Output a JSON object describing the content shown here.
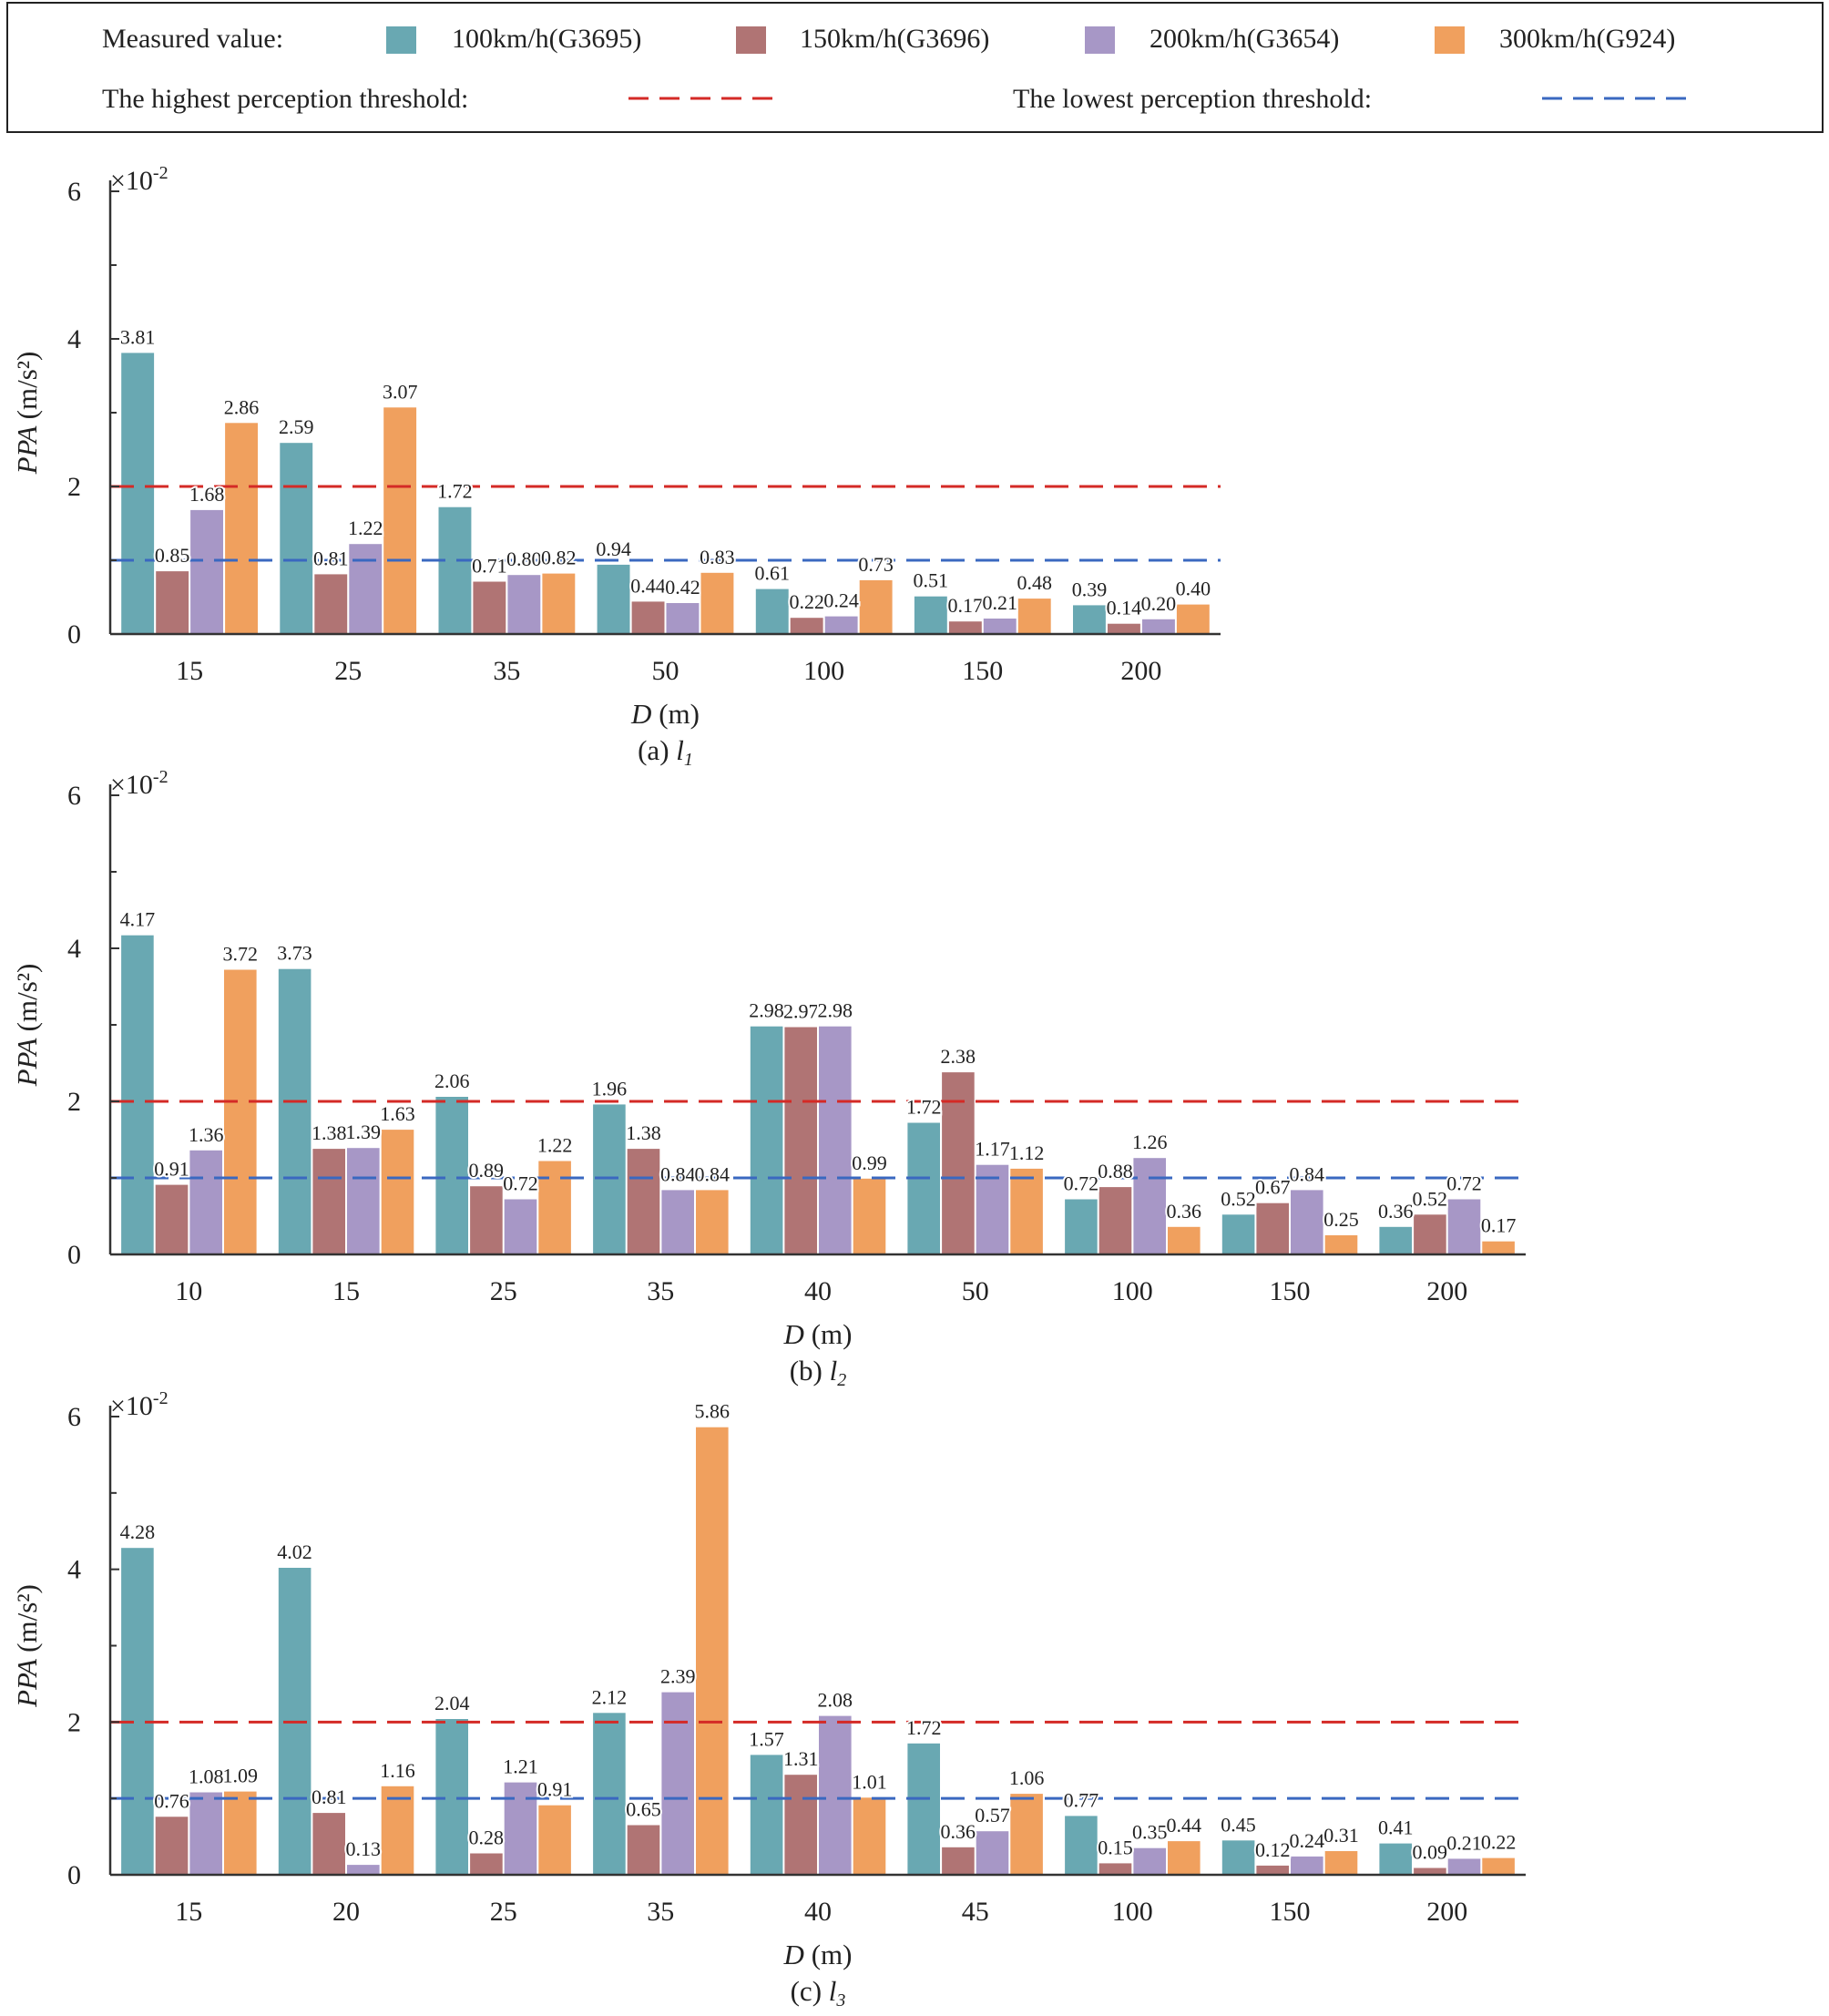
{
  "legend": {
    "measured_label": "Measured value:",
    "series_names": [
      "100km/h(G3695)",
      "150km/h(G3696)",
      "200km/h(G3654)",
      "300km/h(G924)"
    ],
    "highest_label": "The highest perception threshold:",
    "lowest_label": "The lowest perception threshold:"
  },
  "colors": {
    "series": [
      "#69a8b2",
      "#b07474",
      "#a797c6",
      "#f0a05e"
    ],
    "highest": "#d42a26",
    "lowest": "#3a68c0",
    "axis": "#333333"
  },
  "chart_data": [
    {
      "type": "bar",
      "panel_label": "(a)",
      "panel_var": "l",
      "panel_sub": "1",
      "xlabel_var": "D",
      "xlabel_unit": " (m)",
      "ylabel": "PPA (m/s²)",
      "y_exponent": "×10",
      "y_exponent_power": "-2",
      "ylim": [
        0,
        6
      ],
      "yticks": [
        0,
        2,
        4,
        6
      ],
      "thresholds": {
        "highest": 2,
        "lowest": 1
      },
      "categories": [
        "15",
        "25",
        "35",
        "50",
        "100",
        "150",
        "200"
      ],
      "series": [
        {
          "name": "100km/h(G3695)",
          "values": [
            3.81,
            2.59,
            1.72,
            0.94,
            0.61,
            0.51,
            0.39
          ]
        },
        {
          "name": "150km/h(G3696)",
          "values": [
            0.85,
            0.81,
            0.71,
            0.44,
            0.22,
            0.17,
            0.14
          ]
        },
        {
          "name": "200km/h(G3654)",
          "values": [
            1.68,
            1.22,
            0.8,
            0.42,
            0.24,
            0.21,
            0.2
          ]
        },
        {
          "name": "300km/h(G924)",
          "values": [
            2.86,
            3.07,
            0.82,
            0.83,
            0.73,
            0.48,
            0.4
          ]
        }
      ]
    },
    {
      "type": "bar",
      "panel_label": "(b)",
      "panel_var": "l",
      "panel_sub": "2",
      "xlabel_var": "D",
      "xlabel_unit": " (m)",
      "ylabel": "PPA (m/s²)",
      "y_exponent": "×10",
      "y_exponent_power": "-2",
      "ylim": [
        0,
        6
      ],
      "yticks": [
        0,
        2,
        4,
        6
      ],
      "thresholds": {
        "highest": 2,
        "lowest": 1
      },
      "categories": [
        "10",
        "15",
        "25",
        "35",
        "40",
        "50",
        "100",
        "150",
        "200"
      ],
      "series": [
        {
          "name": "100km/h(G3695)",
          "values": [
            4.17,
            3.73,
            2.06,
            1.96,
            2.98,
            1.72,
            0.72,
            0.52,
            0.36
          ]
        },
        {
          "name": "150km/h(G3696)",
          "values": [
            0.91,
            1.38,
            0.89,
            1.38,
            2.97,
            2.38,
            0.88,
            0.67,
            0.52
          ]
        },
        {
          "name": "200km/h(G3654)",
          "values": [
            1.36,
            1.39,
            0.72,
            0.84,
            2.98,
            1.17,
            1.26,
            0.84,
            0.72
          ]
        },
        {
          "name": "300km/h(G924)",
          "values": [
            3.72,
            1.63,
            1.22,
            0.84,
            0.99,
            1.12,
            0.36,
            0.25,
            0.17
          ]
        }
      ]
    },
    {
      "type": "bar",
      "panel_label": "(c)",
      "panel_var": "l",
      "panel_sub": "3",
      "xlabel_var": "D",
      "xlabel_unit": " (m)",
      "ylabel": "PPA (m/s²)",
      "y_exponent": "×10",
      "y_exponent_power": "-2",
      "ylim": [
        0,
        6
      ],
      "yticks": [
        0,
        2,
        4,
        6
      ],
      "thresholds": {
        "highest": 2,
        "lowest": 1
      },
      "categories": [
        "15",
        "20",
        "25",
        "35",
        "40",
        "45",
        "100",
        "150",
        "200"
      ],
      "series": [
        {
          "name": "100km/h(G3695)",
          "values": [
            4.28,
            4.02,
            2.04,
            2.12,
            1.57,
            1.72,
            0.77,
            0.45,
            0.41
          ]
        },
        {
          "name": "150km/h(G3696)",
          "values": [
            0.76,
            0.81,
            0.28,
            0.65,
            1.31,
            0.36,
            0.15,
            0.12,
            0.09
          ]
        },
        {
          "name": "200km/h(G3654)",
          "values": [
            1.08,
            0.13,
            1.21,
            2.39,
            2.08,
            0.57,
            0.35,
            0.24,
            0.21
          ]
        },
        {
          "name": "300km/h(G924)",
          "values": [
            1.09,
            1.16,
            0.91,
            5.86,
            1.01,
            1.06,
            0.44,
            0.31,
            0.22
          ]
        }
      ]
    }
  ]
}
